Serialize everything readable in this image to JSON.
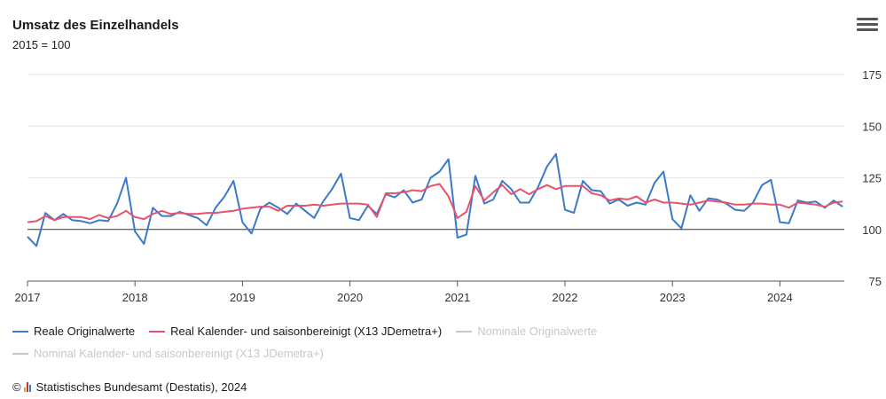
{
  "header": {
    "title": "Umsatz des Einzelhandels",
    "subtitle": "2015 = 100"
  },
  "icons": {
    "menu": "hamburger-menu-icon",
    "logo": "destatis-logo-icon"
  },
  "credit": {
    "copyright": "©",
    "text": "Statistisches Bundesamt (Destatis), 2024"
  },
  "colors": {
    "real_original": "#3a79cc",
    "real_adjusted": "#e8536b",
    "hidden": "#c8c8c8",
    "grid": "#e6e6e6",
    "baseline": "#333333"
  },
  "chart_data": {
    "type": "line",
    "title": "Umsatz des Einzelhandels",
    "subtitle": "2015 = 100",
    "xlabel": "",
    "ylabel": "",
    "x_start": "2017-01",
    "x_ticks": [
      "2017",
      "2018",
      "2019",
      "2020",
      "2021",
      "2022",
      "2023",
      "2024"
    ],
    "ylim": [
      75,
      175
    ],
    "y_ticks": [
      75,
      100,
      125,
      150,
      175
    ],
    "reference_line": 100,
    "grid": true,
    "legend_position": "bottom",
    "series": [
      {
        "name": "Reale Originalwerte",
        "visible": true,
        "color": "#3a79cc",
        "values": [
          96.5,
          92,
          108,
          104.5,
          107.5,
          104.5,
          104,
          103,
          104.5,
          104,
          112.5,
          125,
          99,
          93,
          110.5,
          106.5,
          106.5,
          108.5,
          107,
          105.5,
          102,
          110.5,
          116,
          123.5,
          103.5,
          98,
          110,
          113,
          110.5,
          107.5,
          112.5,
          109,
          105.5,
          113.5,
          119.5,
          127,
          105.5,
          104.5,
          111.5,
          107.5,
          117,
          115.5,
          119,
          113,
          114.5,
          125,
          128,
          134,
          96,
          97.5,
          126,
          112.5,
          114.5,
          123.5,
          119.5,
          113,
          113,
          120.5,
          130.5,
          136.5,
          109.5,
          108,
          123.5,
          119,
          118.5,
          112.5,
          114.5,
          111.5,
          113,
          112,
          122.5,
          128,
          105,
          100.5,
          116.5,
          109,
          115,
          114.5,
          112.5,
          109.5,
          109,
          113,
          121.5,
          124,
          103.5,
          103,
          114,
          113,
          113.5,
          110.5,
          114,
          111
        ]
      },
      {
        "name": "Real Kalender- und saisonbereinigt (X13 JDemetra+)",
        "visible": true,
        "color": "#e8536b",
        "values": [
          103.5,
          104,
          106.5,
          104.5,
          106,
          106,
          106,
          105,
          107,
          105.5,
          106.5,
          109,
          106,
          105,
          107.5,
          109,
          107.5,
          108,
          107.5,
          107.5,
          108,
          108,
          108.5,
          109,
          110,
          110.5,
          111,
          111,
          109,
          111.5,
          111.5,
          111.5,
          112,
          111.5,
          112,
          112.5,
          112.5,
          112.5,
          112,
          106,
          117.5,
          117.5,
          118,
          119,
          118.5,
          121,
          122,
          116,
          105.5,
          108.5,
          121,
          114,
          118,
          121.5,
          117,
          119.5,
          117,
          119.5,
          121.5,
          119.5,
          121,
          121,
          121,
          117.5,
          116.5,
          114,
          115,
          114.5,
          116,
          113,
          114.5,
          113,
          113,
          112.5,
          112,
          113,
          114,
          113.5,
          113,
          112,
          112,
          112.5,
          112.5,
          112,
          112,
          110.5,
          113,
          112.5,
          112,
          111,
          113,
          113.5
        ]
      },
      {
        "name": "Nominale Originalwerte",
        "visible": false,
        "color": "#c8c8c8",
        "values": []
      },
      {
        "name": "Nominal Kalender- und saisonbereinigt (X13 JDemetra+)",
        "visible": false,
        "color": "#c8c8c8",
        "values": []
      }
    ]
  }
}
